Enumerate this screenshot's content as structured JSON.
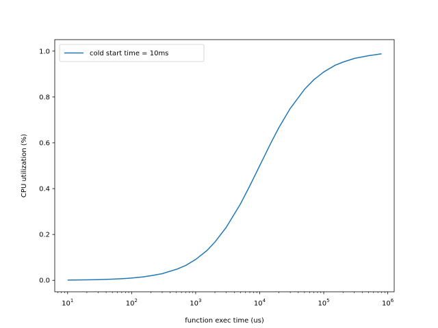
{
  "chart_data": {
    "type": "line",
    "title": "",
    "xlabel": "function exec time (us)",
    "ylabel": "CPU utilization (%)",
    "xscale": "log",
    "xlim": [
      6.3,
      1260000
    ],
    "ylim": [
      -0.05,
      1.05
    ],
    "xticks": [
      {
        "value": 10,
        "base": "10",
        "exp": "1"
      },
      {
        "value": 100,
        "base": "10",
        "exp": "2"
      },
      {
        "value": 1000,
        "base": "10",
        "exp": "3"
      },
      {
        "value": 10000,
        "base": "10",
        "exp": "4"
      },
      {
        "value": 100000,
        "base": "10",
        "exp": "5"
      },
      {
        "value": 1000000,
        "base": "10",
        "exp": "6"
      }
    ],
    "yticks": [
      {
        "value": 0.0,
        "label": "0.0"
      },
      {
        "value": 0.2,
        "label": "0.2"
      },
      {
        "value": 0.4,
        "label": "0.4"
      },
      {
        "value": 0.6,
        "label": "0.6"
      },
      {
        "value": 0.8,
        "label": "0.8"
      },
      {
        "value": 1.0,
        "label": "1.0"
      }
    ],
    "legend": {
      "position": "top-left"
    },
    "grid": false,
    "series": [
      {
        "name": "cold start time = 10ms",
        "color": "#1f77b4",
        "x": [
          10,
          20,
          30,
          50,
          70,
          100,
          150,
          200,
          300,
          500,
          700,
          1000,
          1500,
          2000,
          3000,
          5000,
          7000,
          10000,
          15000,
          20000,
          30000,
          50000,
          70000,
          100000,
          150000,
          200000,
          300000,
          500000,
          800000
        ],
        "y": [
          0.001,
          0.002,
          0.003,
          0.005,
          0.007,
          0.01,
          0.015,
          0.02,
          0.029,
          0.048,
          0.065,
          0.091,
          0.13,
          0.167,
          0.231,
          0.333,
          0.412,
          0.5,
          0.6,
          0.667,
          0.75,
          0.833,
          0.875,
          0.909,
          0.938,
          0.952,
          0.968,
          0.98,
          0.988
        ]
      }
    ]
  }
}
